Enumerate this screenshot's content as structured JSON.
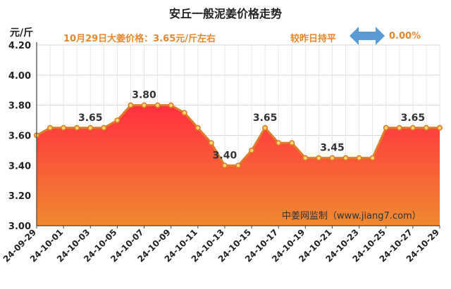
{
  "title": "安丘一般泥姜价格走势",
  "unit_label": "元/斤",
  "summary": "10月29日大姜价格：3.65元/斤左右",
  "compare_label": "较昨日持平",
  "change_value": "0.00%",
  "watermark": "中姜网监制（www.jiang7.com）",
  "colors": {
    "line": "#e07b2a",
    "marker_fill": "#f6d66a",
    "area_top": "#ff2f3f",
    "area_bottom": "#f08a30",
    "arrow": "#5b9bd5",
    "accent_text": "#e8872e"
  },
  "chart_data": {
    "type": "area",
    "title": "安丘一般泥姜价格走势",
    "ylabel": "元/斤",
    "ylim": [
      3.0,
      4.2
    ],
    "yticks": [
      "3.00",
      "3.20",
      "3.40",
      "3.60",
      "3.80",
      "4.00",
      "4.20"
    ],
    "grid": true,
    "x": [
      "24-09-29",
      "24-09-30",
      "24-10-01",
      "24-10-02",
      "24-10-03",
      "24-10-04",
      "24-10-05",
      "24-10-06",
      "24-10-07",
      "24-10-08",
      "24-10-09",
      "24-10-10",
      "24-10-11",
      "24-10-12",
      "24-10-13",
      "24-10-14",
      "24-10-15",
      "24-10-16",
      "24-10-17",
      "24-10-18",
      "24-10-19",
      "24-10-20",
      "24-10-21",
      "24-10-22",
      "24-10-23",
      "24-10-24",
      "24-10-25",
      "24-10-26",
      "24-10-27",
      "24-10-28",
      "24-10-29"
    ],
    "xtick_labels": [
      "24-09-29",
      "24-10-01",
      "24-10-03",
      "24-10-05",
      "24-10-07",
      "24-10-09",
      "24-10-11",
      "24-10-13",
      "24-10-15",
      "24-10-17",
      "24-10-19",
      "24-10-21",
      "24-10-23",
      "24-10-25",
      "24-10-27",
      "24-10-29"
    ],
    "values": [
      3.6,
      3.65,
      3.65,
      3.65,
      3.65,
      3.65,
      3.7,
      3.8,
      3.8,
      3.8,
      3.8,
      3.75,
      3.65,
      3.55,
      3.4,
      3.4,
      3.5,
      3.65,
      3.55,
      3.55,
      3.45,
      3.45,
      3.45,
      3.45,
      3.45,
      3.45,
      3.65,
      3.65,
      3.65,
      3.65,
      3.65
    ],
    "annotations": [
      {
        "index": 4,
        "text": "3.65"
      },
      {
        "index": 8,
        "text": "3.80"
      },
      {
        "index": 14,
        "text": "3.40"
      },
      {
        "index": 17,
        "text": "3.65"
      },
      {
        "index": 22,
        "text": "3.45"
      },
      {
        "index": 28,
        "text": "3.65"
      }
    ]
  }
}
